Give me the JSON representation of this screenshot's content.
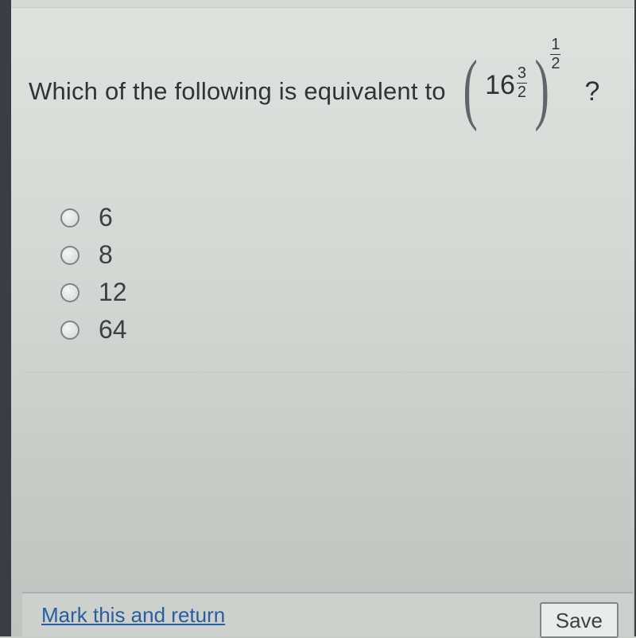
{
  "question": {
    "stem_text": "Which of the following is equivalent to",
    "base": "16",
    "inner_exp_num": "3",
    "inner_exp_den": "2",
    "outer_exp_num": "1",
    "outer_exp_den": "2",
    "tail": "?"
  },
  "choices": [
    {
      "label": "6"
    },
    {
      "label": "8"
    },
    {
      "label": "12"
    },
    {
      "label": "64"
    }
  ],
  "footer": {
    "mark_link": "Mark this and return",
    "save_button": "Save"
  }
}
